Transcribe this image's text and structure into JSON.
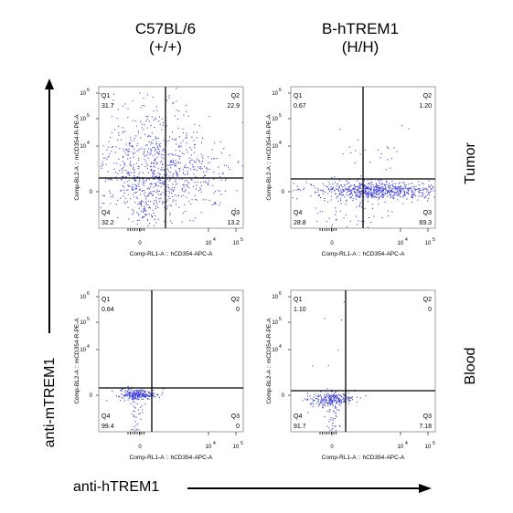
{
  "columns": [
    {
      "line1": "C57BL/6",
      "line2": "(+/+)"
    },
    {
      "line1": "B-hTREM1",
      "line2": "(H/H)"
    }
  ],
  "rows": [
    "Tumor",
    "Blood"
  ],
  "y_axis_label": "anti-mTREM1",
  "x_axis_label": "anti-hTREM1",
  "chart_data": [
    {
      "type": "scatter",
      "row": "Tumor",
      "column": "C57BL/6 (+/+)",
      "xlabel": "Comp-RL1-A :: hCD354-APC-A",
      "ylabel": "Comp-BL2-A :: mCD354-R-PE-A",
      "xticks": [
        "0",
        "10^4",
        "10^5"
      ],
      "yticks": [
        "0",
        "10^4",
        "10^5",
        "10^6"
      ],
      "quadrants": {
        "Q1": "31.7",
        "Q2": "22.9",
        "Q3": "13.2",
        "Q4": "32.2"
      },
      "color": "#3b3bd6"
    },
    {
      "type": "scatter",
      "row": "Tumor",
      "column": "B-hTREM1 (H/H)",
      "xlabel": "Comp-RL1-A :: hCD354-APC-A",
      "ylabel": "Comp-BL2-A :: mCD354-R-PE-A",
      "xticks": [
        "0",
        "10^4",
        "10^5"
      ],
      "yticks": [
        "0",
        "10^4",
        "10^5",
        "10^6"
      ],
      "quadrants": {
        "Q1": "0.67",
        "Q2": "1.20",
        "Q3": "69.3",
        "Q4": "28.8"
      },
      "color": "#3b3bd6"
    },
    {
      "type": "scatter",
      "row": "Blood",
      "column": "C57BL/6 (+/+)",
      "xlabel": "Comp-RL1-A :: hCD354-APC-A",
      "ylabel": "Comp-BL2-A :: mCD354-R-PE-A",
      "xticks": [
        "0",
        "10^4",
        "10^5"
      ],
      "yticks": [
        "0",
        "10^4",
        "10^5",
        "10^6"
      ],
      "quadrants": {
        "Q1": "0.64",
        "Q2": "0",
        "Q3": "0",
        "Q4": "99.4"
      },
      "color": "#3b3bd6"
    },
    {
      "type": "scatter",
      "row": "Blood",
      "column": "B-hTREM1 (H/H)",
      "xlabel": "Comp-RL1-A :: hCD354-APC-A",
      "ylabel": "Comp-BL2-A :: mCD354-R-PE-A",
      "xticks": [
        "0",
        "10^4",
        "10^5"
      ],
      "yticks": [
        "0",
        "10^4",
        "10^5",
        "10^6"
      ],
      "quadrants": {
        "Q1": "1.10",
        "Q2": "0",
        "Q3": "7.18",
        "Q4": "91.7"
      },
      "color": "#3b3bd6"
    }
  ]
}
